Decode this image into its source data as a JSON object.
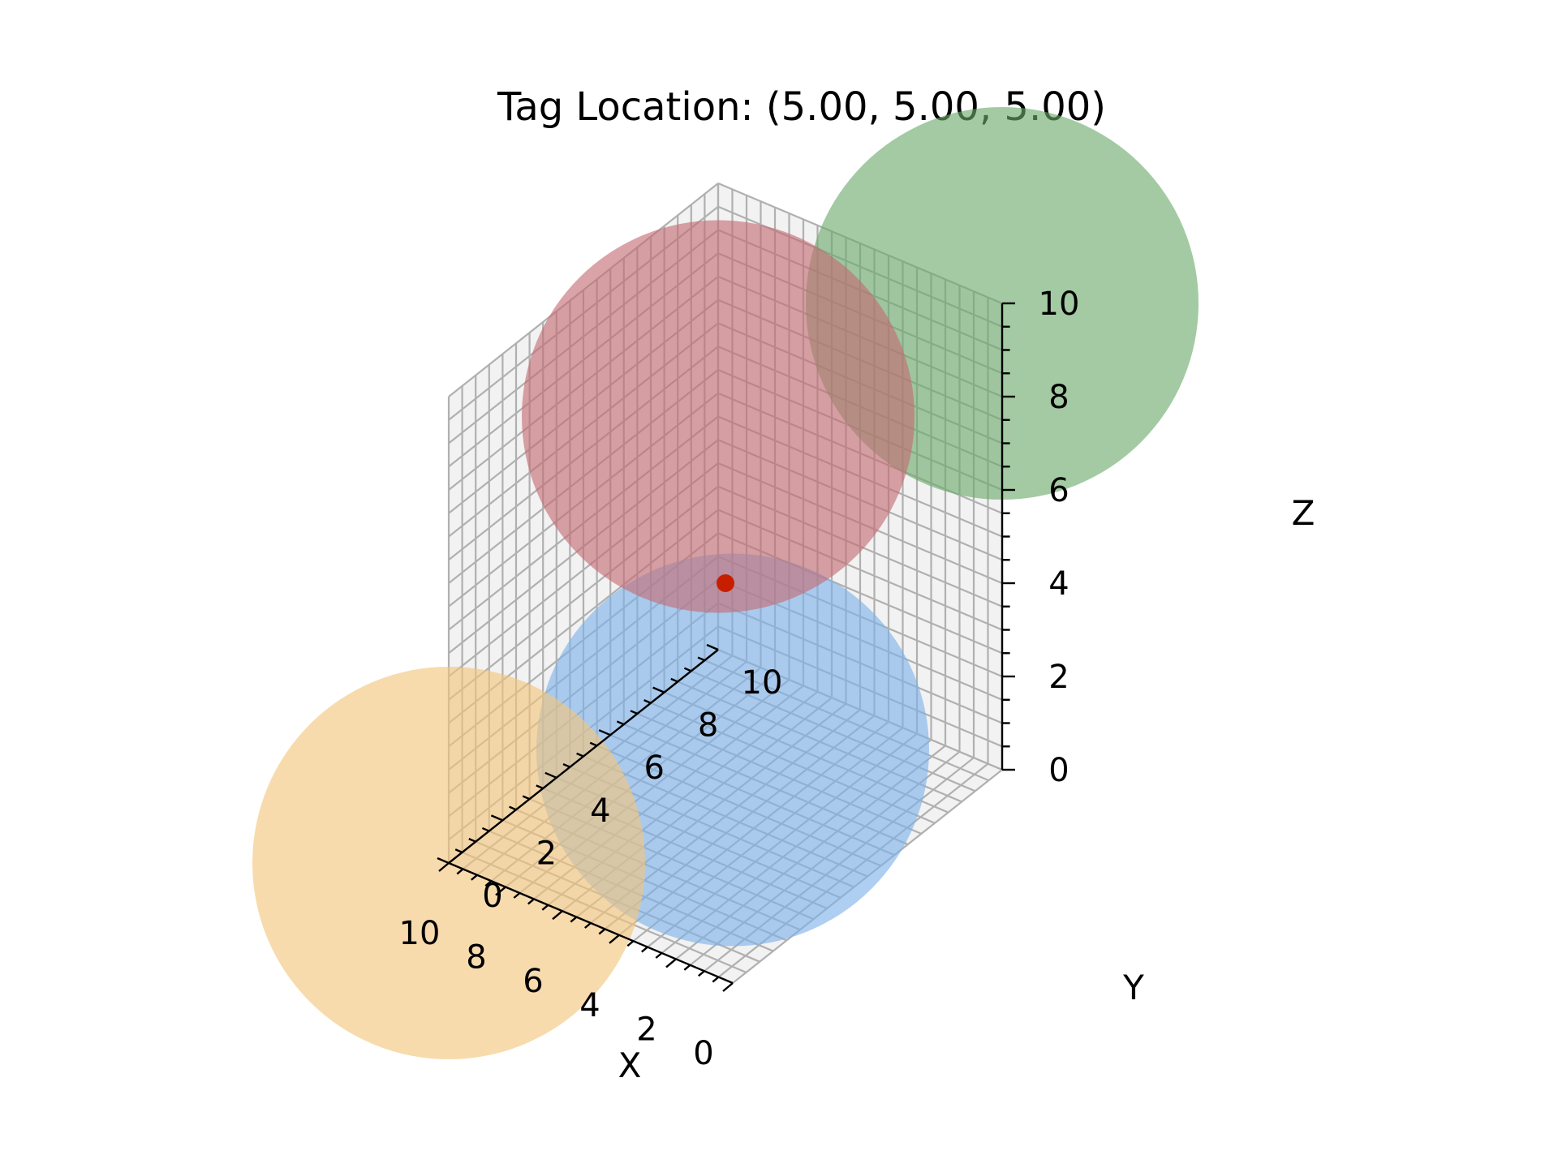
{
  "chart_data": {
    "type": "scatter",
    "projection": "3d",
    "title": "Tag Location: (5.00, 5.00, 5.00)",
    "xlabel": "X",
    "ylabel": "Y",
    "zlabel": "Z",
    "xlim": [
      0,
      10
    ],
    "ylim": [
      0,
      10
    ],
    "zlim": [
      0,
      10
    ],
    "xticks": [
      "0",
      "2",
      "4",
      "6",
      "8",
      "10"
    ],
    "yticks": [
      "0",
      "2",
      "4",
      "6",
      "8",
      "10"
    ],
    "zticks": [
      "0",
      "2",
      "4",
      "6",
      "8",
      "10"
    ],
    "grid": true,
    "spheres": [
      {
        "color": "#7cb2e8",
        "center": [
          0,
          0,
          5
        ],
        "radius": 5
      },
      {
        "color": "#f4c57a",
        "center": [
          10,
          0,
          0
        ],
        "radius": 5
      },
      {
        "color": "#6aaa6a",
        "center": [
          0,
          10,
          10
        ],
        "radius": 5
      },
      {
        "color": "#c46a72",
        "center": [
          10,
          10,
          5
        ],
        "radius": 5
      }
    ],
    "tag": {
      "x": 5.0,
      "y": 5.0,
      "z": 5.0,
      "color": "#c81e00"
    }
  }
}
